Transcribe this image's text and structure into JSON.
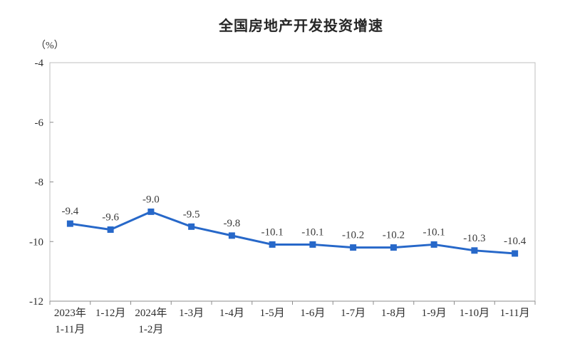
{
  "page": {
    "background_color": "#ffffff"
  },
  "chart_data": {
    "type": "line",
    "title": "全国房地产开发投资增速",
    "unit_label": "（%）",
    "categories": [
      [
        "2023年",
        "1-11月"
      ],
      [
        "1-12月"
      ],
      [
        "2024年",
        "1-2月"
      ],
      [
        "1-3月"
      ],
      [
        "1-4月"
      ],
      [
        "1-5月"
      ],
      [
        "1-6月"
      ],
      [
        "1-7月"
      ],
      [
        "1-8月"
      ],
      [
        "1-9月"
      ],
      [
        "1-10月"
      ],
      [
        "1-11月"
      ]
    ],
    "values": [
      -9.4,
      -9.6,
      -9.0,
      -9.5,
      -9.8,
      -10.1,
      -10.1,
      -10.2,
      -10.2,
      -10.1,
      -10.3,
      -10.4
    ],
    "labels": [
      "-9.4",
      "-9.6",
      "-9.0",
      "-9.5",
      "-9.8",
      "-10.1",
      "-10.1",
      "-10.2",
      "-10.2",
      "-10.1",
      "-10.3",
      "-10.4"
    ],
    "ylim": [
      -12,
      -4
    ],
    "yticks": [
      "-4",
      "-6",
      "-8",
      "-10",
      "-12"
    ],
    "ytick_values": [
      -4,
      -6,
      -8,
      -10,
      -12
    ],
    "grid": false,
    "legend": "none",
    "series_name": "全国房地产开发投资增速",
    "series_color": "#2768C9",
    "marker_shape": "square",
    "plot_border_color": "#BFBFBF",
    "axis_color": "#8C8C8C",
    "text_color": "#2E2E2E",
    "label_color": "#3A3A3A"
  }
}
